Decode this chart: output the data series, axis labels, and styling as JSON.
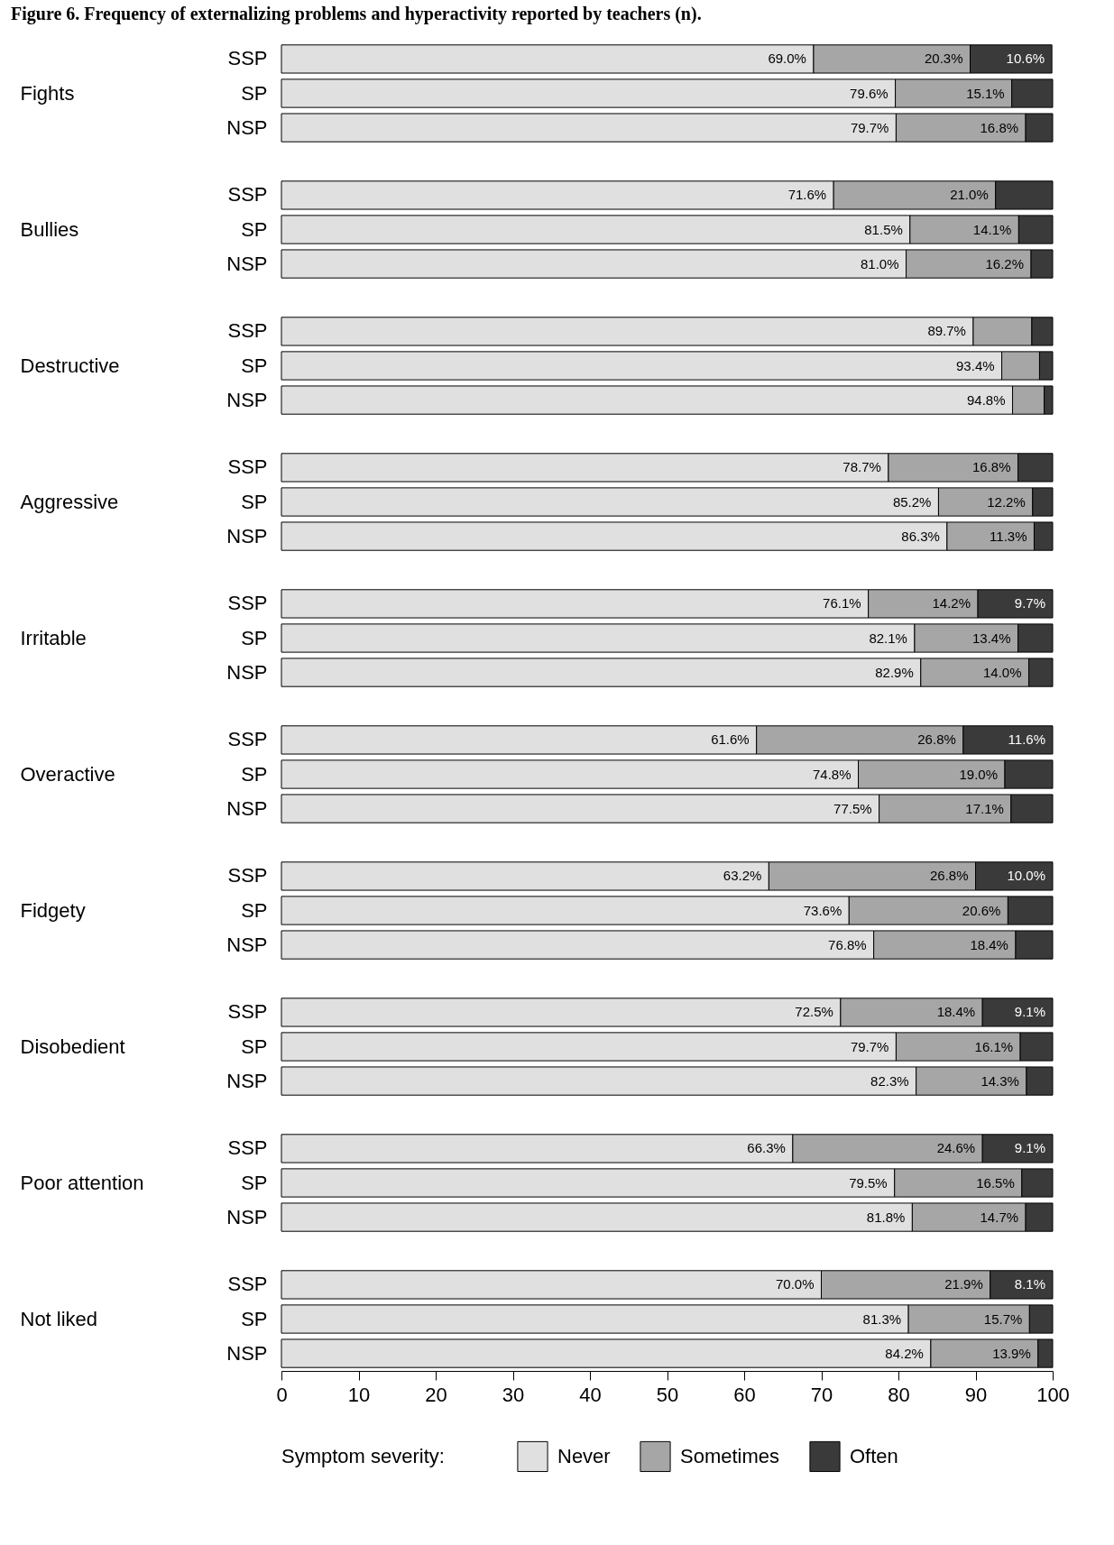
{
  "chart_data": [
    {
      "type": "bar",
      "orientation": "horizontal",
      "stacked": true,
      "title": "Figure 6. Frequency of externalizing problems and hyperactivity reported by teachers (n).",
      "ylabel": "Fights",
      "categories": [
        "SSP",
        "SP",
        "NSP"
      ],
      "xlim": [
        0,
        100
      ],
      "tick_labels": "y",
      "series": [
        {
          "color": "#e0e0e0",
          "values": [
            69.0,
            79.6,
            79.7
          ],
          "value_labels": [
            "69.0%",
            "79.6%",
            "79.7%"
          ]
        },
        {
          "color": "#a6a6a6",
          "values": [
            20.3,
            15.1,
            16.8
          ],
          "value_labels": [
            "20.3%",
            "15.1%",
            "16.8%"
          ]
        },
        {
          "color": "#3a3a3a",
          "values": [
            10.6,
            5.3,
            3.5
          ],
          "value_labels": [
            "10.6%",
            null,
            null
          ]
        }
      ]
    },
    {
      "type": "bar",
      "orientation": "horizontal",
      "stacked": true,
      "ylabel": "Bullies",
      "categories": [
        "SSP",
        "SP",
        "NSP"
      ],
      "xlim": [
        0,
        100
      ],
      "tick_labels": "y",
      "series": [
        {
          "color": "#e0e0e0",
          "values": [
            71.6,
            81.5,
            81.0
          ],
          "value_labels": [
            "71.6%",
            "81.5%",
            "81.0%"
          ]
        },
        {
          "color": "#a6a6a6",
          "values": [
            21.0,
            14.1,
            16.2
          ],
          "value_labels": [
            "21.0%",
            "14.1%",
            "16.2%"
          ]
        },
        {
          "color": "#3a3a3a",
          "values": [
            7.4,
            4.4,
            2.8
          ]
        }
      ]
    },
    {
      "type": "bar",
      "orientation": "horizontal",
      "stacked": true,
      "ylabel": "Destructive",
      "categories": [
        "SSP",
        "SP",
        "NSP"
      ],
      "xlim": [
        0,
        100
      ],
      "tick_labels": "y",
      "series": [
        {
          "color": "#e0e0e0",
          "values": [
            89.7,
            93.4,
            94.8
          ],
          "value_labels": [
            "89.7%",
            "93.4%",
            "94.8%"
          ]
        },
        {
          "color": "#a6a6a6",
          "values": [
            7.6,
            4.9,
            4.1
          ]
        },
        {
          "color": "#3a3a3a",
          "values": [
            2.7,
            1.7,
            1.1
          ]
        }
      ]
    },
    {
      "type": "bar",
      "orientation": "horizontal",
      "stacked": true,
      "ylabel": "Aggressive",
      "categories": [
        "SSP",
        "SP",
        "NSP"
      ],
      "xlim": [
        0,
        100
      ],
      "tick_labels": "y",
      "series": [
        {
          "color": "#e0e0e0",
          "values": [
            78.7,
            85.2,
            86.3
          ],
          "value_labels": [
            "78.7%",
            "85.2%",
            "86.3%"
          ]
        },
        {
          "color": "#a6a6a6",
          "values": [
            16.8,
            12.2,
            11.3
          ],
          "value_labels": [
            "16.8%",
            "12.2%",
            "11.3%"
          ]
        },
        {
          "color": "#3a3a3a",
          "values": [
            4.5,
            2.6,
            2.4
          ]
        }
      ]
    },
    {
      "type": "bar",
      "orientation": "horizontal",
      "stacked": true,
      "ylabel": "Irritable",
      "categories": [
        "SSP",
        "SP",
        "NSP"
      ],
      "xlim": [
        0,
        100
      ],
      "tick_labels": "y",
      "series": [
        {
          "color": "#e0e0e0",
          "values": [
            76.1,
            82.1,
            82.9
          ],
          "value_labels": [
            "76.1%",
            "82.1%",
            "82.9%"
          ]
        },
        {
          "color": "#a6a6a6",
          "values": [
            14.2,
            13.4,
            14.0
          ],
          "value_labels": [
            "14.2%",
            "13.4%",
            "14.0%"
          ]
        },
        {
          "color": "#3a3a3a",
          "values": [
            9.7,
            4.5,
            3.1
          ],
          "value_labels": [
            "9.7%",
            null,
            null
          ]
        }
      ]
    },
    {
      "type": "bar",
      "orientation": "horizontal",
      "stacked": true,
      "ylabel": "Overactive",
      "categories": [
        "SSP",
        "SP",
        "NSP"
      ],
      "xlim": [
        0,
        100
      ],
      "tick_labels": "y",
      "series": [
        {
          "color": "#e0e0e0",
          "values": [
            61.6,
            74.8,
            77.5
          ],
          "value_labels": [
            "61.6%",
            "74.8%",
            "77.5%"
          ]
        },
        {
          "color": "#a6a6a6",
          "values": [
            26.8,
            19.0,
            17.1
          ],
          "value_labels": [
            "26.8%",
            "19.0%",
            "17.1%"
          ]
        },
        {
          "color": "#3a3a3a",
          "values": [
            11.6,
            6.2,
            5.4
          ],
          "value_labels": [
            "11.6%",
            null,
            null
          ]
        }
      ]
    },
    {
      "type": "bar",
      "orientation": "horizontal",
      "stacked": true,
      "ylabel": "Fidgety",
      "categories": [
        "SSP",
        "SP",
        "NSP"
      ],
      "xlim": [
        0,
        100
      ],
      "tick_labels": "y",
      "series": [
        {
          "color": "#e0e0e0",
          "values": [
            63.2,
            73.6,
            76.8
          ],
          "value_labels": [
            "63.2%",
            "73.6%",
            "76.8%"
          ]
        },
        {
          "color": "#a6a6a6",
          "values": [
            26.8,
            20.6,
            18.4
          ],
          "value_labels": [
            "26.8%",
            "20.6%",
            "18.4%"
          ]
        },
        {
          "color": "#3a3a3a",
          "values": [
            10.0,
            5.8,
            4.8
          ],
          "value_labels": [
            "10.0%",
            null,
            null
          ]
        }
      ]
    },
    {
      "type": "bar",
      "orientation": "horizontal",
      "stacked": true,
      "ylabel": "Disobedient",
      "categories": [
        "SSP",
        "SP",
        "NSP"
      ],
      "xlim": [
        0,
        100
      ],
      "tick_labels": "y",
      "series": [
        {
          "color": "#e0e0e0",
          "values": [
            72.5,
            79.7,
            82.3
          ],
          "value_labels": [
            "72.5%",
            "79.7%",
            "82.3%"
          ]
        },
        {
          "color": "#a6a6a6",
          "values": [
            18.4,
            16.1,
            14.3
          ],
          "value_labels": [
            "18.4%",
            "16.1%",
            "14.3%"
          ]
        },
        {
          "color": "#3a3a3a",
          "values": [
            9.1,
            4.2,
            3.4
          ],
          "value_labels": [
            "9.1%",
            null,
            null
          ]
        }
      ]
    },
    {
      "type": "bar",
      "orientation": "horizontal",
      "stacked": true,
      "ylabel": "Poor attention",
      "categories": [
        "SSP",
        "SP",
        "NSP"
      ],
      "xlim": [
        0,
        100
      ],
      "tick_labels": "y",
      "series": [
        {
          "color": "#e0e0e0",
          "values": [
            66.3,
            79.5,
            81.8
          ],
          "value_labels": [
            "66.3%",
            "79.5%",
            "81.8%"
          ]
        },
        {
          "color": "#a6a6a6",
          "values": [
            24.6,
            16.5,
            14.7
          ],
          "value_labels": [
            "24.6%",
            "16.5%",
            "14.7%"
          ]
        },
        {
          "color": "#3a3a3a",
          "values": [
            9.1,
            4.0,
            3.5
          ],
          "value_labels": [
            "9.1%",
            null,
            null
          ]
        }
      ]
    },
    {
      "type": "bar",
      "orientation": "horizontal",
      "stacked": true,
      "ylabel": "Not liked",
      "categories": [
        "SSP",
        "SP",
        "NSP"
      ],
      "xlim": [
        0,
        100
      ],
      "xticks": [
        0,
        10,
        20,
        30,
        40,
        50,
        60,
        70,
        80,
        90,
        100
      ],
      "legend": "bottom",
      "legend_title": "Symptom severity:",
      "series": [
        {
          "name": "Never",
          "color": "#e0e0e0",
          "values": [
            70.0,
            81.3,
            84.2
          ],
          "value_labels": [
            "70.0%",
            "81.3%",
            "84.2%"
          ]
        },
        {
          "name": "Sometimes",
          "color": "#a6a6a6",
          "values": [
            21.9,
            15.7,
            13.9
          ],
          "value_labels": [
            "21.9%",
            "15.7%",
            "13.9%"
          ]
        },
        {
          "name": "Often",
          "color": "#3a3a3a",
          "values": [
            8.1,
            3.0,
            1.9
          ],
          "value_labels": [
            "8.1%",
            null,
            null
          ]
        }
      ]
    }
  ]
}
